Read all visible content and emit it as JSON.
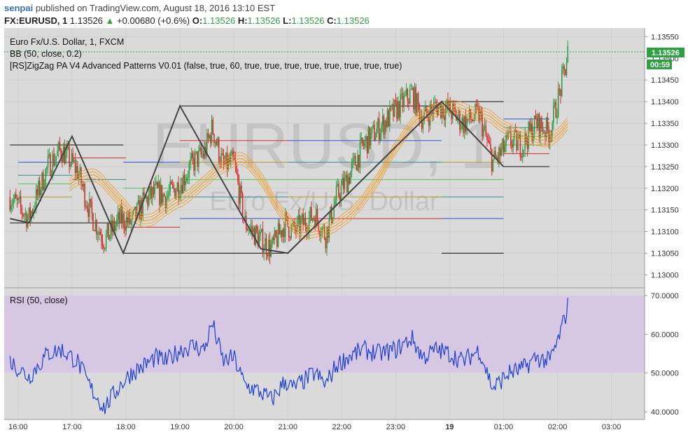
{
  "header": {
    "user": "senpai",
    "published": "published on TradingView.com, August 18, 2016 13:10 EST",
    "symbol": "FX:EURUSD, 1",
    "price": "1.13526",
    "change": "+0.00680 (+0.6%)",
    "o_label": "O:",
    "o_value": "1.13526",
    "h_label": "H:",
    "h_value": "1.13526",
    "l_label": "L:",
    "l_value": "1.13526",
    "c_label": "C:",
    "c_value": "1.13526"
  },
  "watermark": {
    "symbol": "EURUSD, 1",
    "name": "Euro Fx/U.S. Dollar"
  },
  "legend": {
    "title": "Euro Fx/U.S. Dollar, 1, FXCM",
    "bb": "BB (50, close, 0.2)",
    "zigzag": "[RS]ZigZag PA V4 Advanced Patterns V0.01 (false, true, 60, true, true, true, true, true, true, true, true)",
    "rsi": "RSI (50, close)"
  },
  "price_tag": {
    "last": "1.13526",
    "countdown": "00:59"
  },
  "colors": {
    "candle_up": "#2ea043",
    "candle_down": "#d62c2c",
    "bb": "#f0a030",
    "zigzag": "#444444",
    "rsi_line": "#1f3fd6",
    "rsi_band": "#d9c9e6",
    "level_black": "#111111",
    "level_red": "#d62c2c",
    "level_blue": "#2f52d6",
    "level_olive": "#a69a2f",
    "level_green": "#4ccb4c",
    "level_teal": "#2f8f8a"
  },
  "chart_data": [
    {
      "type": "candlestick",
      "title": "Euro Fx/U.S. Dollar, 1, FXCM",
      "x_ticks": [
        "16:00",
        "17:00",
        "18:00",
        "19:00",
        "20:00",
        "21:00",
        "22:00",
        "23:00",
        "19",
        "01:00",
        "02:00",
        "03:00"
      ],
      "y_ticks": [
        "1.13550",
        "1.13500",
        "1.13450",
        "1.13400",
        "1.13350",
        "1.13300",
        "1.13250",
        "1.13200",
        "1.13150",
        "1.13100",
        "1.13050",
        "1.13000"
      ],
      "ylim": [
        1.1297,
        1.1357
      ],
      "last_price": 1.13526,
      "close_path": {
        "x_hours": [
          15.85,
          16.2,
          16.55,
          16.8,
          17.1,
          17.35,
          17.6,
          17.9,
          18.1,
          18.35,
          18.55,
          18.75,
          19.0,
          19.25,
          19.45,
          19.6,
          19.8,
          20.0,
          20.2,
          20.5,
          20.7,
          20.95,
          21.1,
          21.3,
          21.5,
          21.7,
          21.9,
          22.1,
          22.4,
          22.7,
          23.0,
          23.3,
          23.5,
          23.75,
          24.0,
          24.25,
          24.55,
          24.8,
          24.95,
          25.1,
          25.35,
          25.6,
          25.85,
          26.0,
          26.15,
          26.2
        ],
        "values": [
          1.1318,
          1.1313,
          1.1325,
          1.1329,
          1.1324,
          1.1314,
          1.1308,
          1.1313,
          1.1312,
          1.1317,
          1.1319,
          1.1318,
          1.1321,
          1.1326,
          1.1328,
          1.1334,
          1.1325,
          1.1326,
          1.1312,
          1.1308,
          1.1306,
          1.1312,
          1.131,
          1.1312,
          1.1314,
          1.1309,
          1.1318,
          1.1322,
          1.133,
          1.1334,
          1.1338,
          1.1342,
          1.1336,
          1.1339,
          1.1338,
          1.1335,
          1.1337,
          1.1326,
          1.1328,
          1.1331,
          1.133,
          1.1335,
          1.1333,
          1.134,
          1.1348,
          1.13526
        ]
      },
      "zigzag": {
        "x_hours": [
          15.85,
          16.2,
          17.0,
          17.95,
          19.0,
          20.5,
          21.0,
          23.85,
          25.0
        ],
        "values": [
          1.1313,
          1.1312,
          1.1332,
          1.1305,
          1.1339,
          1.1306,
          1.1305,
          1.134,
          1.1325
        ]
      },
      "levels": [
        {
          "from": 15.85,
          "to": 17.95,
          "value": 1.133,
          "color": "black"
        },
        {
          "from": 15.85,
          "to": 17.95,
          "value": 1.1312,
          "color": "black"
        },
        {
          "from": 16.0,
          "to": 17.0,
          "value": 1.1326,
          "color": "blue"
        },
        {
          "from": 16.0,
          "to": 17.0,
          "value": 1.1323,
          "color": "teal"
        },
        {
          "from": 16.0,
          "to": 17.0,
          "value": 1.1321,
          "color": "green"
        },
        {
          "from": 16.0,
          "to": 17.0,
          "value": 1.1318,
          "color": "olive"
        },
        {
          "from": 17.0,
          "to": 18.0,
          "value": 1.1327,
          "color": "red"
        },
        {
          "from": 17.0,
          "to": 18.0,
          "value": 1.1322,
          "color": "teal"
        },
        {
          "from": 17.95,
          "to": 19.0,
          "value": 1.1311,
          "color": "red"
        },
        {
          "from": 17.95,
          "to": 21.0,
          "value": 1.1305,
          "color": "black"
        },
        {
          "from": 17.95,
          "to": 19.0,
          "value": 1.1326,
          "color": "blue"
        },
        {
          "from": 17.95,
          "to": 19.0,
          "value": 1.132,
          "color": "green"
        },
        {
          "from": 19.0,
          "to": 23.85,
          "value": 1.1339,
          "color": "black"
        },
        {
          "from": 19.0,
          "to": 21.0,
          "value": 1.1331,
          "color": "red"
        },
        {
          "from": 19.0,
          "to": 21.0,
          "value": 1.1326,
          "color": "olive"
        },
        {
          "from": 19.0,
          "to": 21.0,
          "value": 1.1322,
          "color": "green"
        },
        {
          "from": 19.0,
          "to": 21.0,
          "value": 1.1318,
          "color": "teal"
        },
        {
          "from": 19.0,
          "to": 21.0,
          "value": 1.1313,
          "color": "blue"
        },
        {
          "from": 21.0,
          "to": 23.85,
          "value": 1.1331,
          "color": "blue"
        },
        {
          "from": 21.0,
          "to": 23.85,
          "value": 1.1326,
          "color": "teal"
        },
        {
          "from": 21.0,
          "to": 23.85,
          "value": 1.1322,
          "color": "green"
        },
        {
          "from": 21.0,
          "to": 23.85,
          "value": 1.1318,
          "color": "olive"
        },
        {
          "from": 21.0,
          "to": 23.85,
          "value": 1.1313,
          "color": "red"
        },
        {
          "from": 23.85,
          "to": 25.0,
          "value": 1.134,
          "color": "black"
        },
        {
          "from": 23.85,
          "to": 25.0,
          "value": 1.1326,
          "color": "olive"
        },
        {
          "from": 23.85,
          "to": 25.0,
          "value": 1.1322,
          "color": "green"
        },
        {
          "from": 23.85,
          "to": 25.0,
          "value": 1.1318,
          "color": "teal"
        },
        {
          "from": 23.85,
          "to": 25.0,
          "value": 1.1313,
          "color": "blue"
        },
        {
          "from": 23.85,
          "to": 25.0,
          "value": 1.1305,
          "color": "black"
        },
        {
          "from": 25.0,
          "to": 25.85,
          "value": 1.1336,
          "color": "blue"
        },
        {
          "from": 25.0,
          "to": 25.85,
          "value": 1.1334,
          "color": "teal"
        },
        {
          "from": 25.0,
          "to": 25.85,
          "value": 1.1332,
          "color": "green"
        },
        {
          "from": 25.0,
          "to": 25.85,
          "value": 1.133,
          "color": "olive"
        },
        {
          "from": 25.0,
          "to": 25.85,
          "value": 1.1328,
          "color": "red"
        },
        {
          "from": 25.0,
          "to": 25.85,
          "value": 1.1325,
          "color": "black"
        }
      ]
    },
    {
      "type": "line",
      "title": "RSI (50, close)",
      "y_ticks": [
        "70.0000",
        "60.0000",
        "50.0000",
        "40.0000"
      ],
      "ylim": [
        38,
        72
      ],
      "band": [
        50,
        70
      ],
      "series": [
        {
          "x_hours": [
            15.85,
            16.2,
            16.55,
            16.8,
            17.1,
            17.35,
            17.6,
            17.9,
            18.1,
            18.35,
            18.55,
            18.75,
            19.0,
            19.25,
            19.45,
            19.6,
            19.8,
            20.0,
            20.2,
            20.5,
            20.7,
            20.95,
            21.1,
            21.3,
            21.5,
            21.7,
            21.9,
            22.1,
            22.4,
            22.7,
            23.0,
            23.3,
            23.5,
            23.75,
            24.0,
            24.25,
            24.55,
            24.8,
            24.95,
            25.1,
            25.35,
            25.6,
            25.85,
            26.0,
            26.15,
            26.2
          ],
          "values": [
            53,
            49,
            55,
            56,
            53,
            46,
            41,
            47,
            50,
            52,
            54,
            53,
            56,
            57,
            56,
            63,
            53,
            54,
            47,
            45,
            43,
            48,
            46,
            48,
            50,
            47,
            52,
            54,
            56,
            55,
            56,
            59,
            54,
            56,
            55,
            53,
            56,
            46,
            48,
            50,
            51,
            54,
            53,
            58,
            65,
            68
          ]
        }
      ]
    }
  ]
}
